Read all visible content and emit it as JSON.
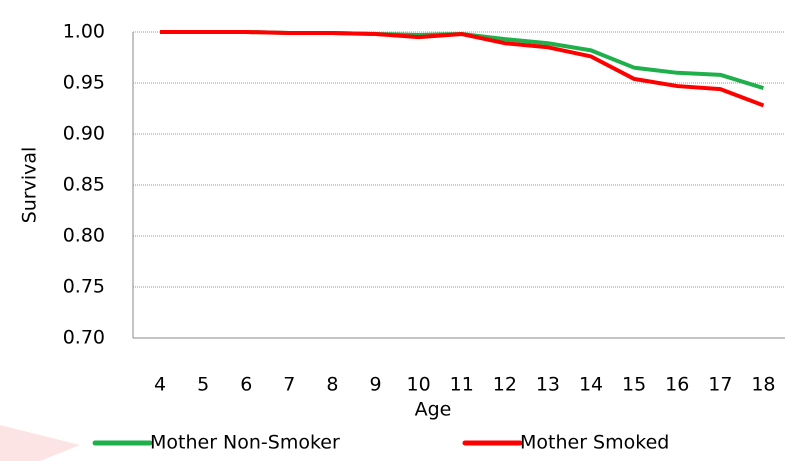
{
  "chart_data": {
    "type": "line",
    "x_label": "Age",
    "y_label": "Survival",
    "categories": [
      4,
      5,
      6,
      7,
      8,
      9,
      10,
      11,
      12,
      13,
      14,
      15,
      16,
      17,
      18
    ],
    "series": [
      {
        "name": "Mother Non-Smoker",
        "color": "#1fb04b",
        "values": [
          1.0,
          1.0,
          1.0,
          0.999,
          0.999,
          0.998,
          0.997,
          0.998,
          0.993,
          0.989,
          0.982,
          0.965,
          0.96,
          0.958,
          0.945
        ]
      },
      {
        "name": "Mother Smoked",
        "color": "#ff0000",
        "values": [
          1.0,
          1.0,
          1.0,
          0.999,
          0.999,
          0.998,
          0.995,
          0.998,
          0.989,
          0.985,
          0.976,
          0.954,
          0.947,
          0.944,
          0.928
        ]
      }
    ],
    "ylim": [
      0.7,
      1.0
    ],
    "yticks": [
      {
        "value": 0.7,
        "label": "0.70"
      },
      {
        "value": 0.75,
        "label": "0.75"
      },
      {
        "value": 0.8,
        "label": "0.80"
      },
      {
        "value": 0.85,
        "label": "0.85"
      },
      {
        "value": 0.9,
        "label": "0.90"
      },
      {
        "value": 0.95,
        "label": "0.95"
      },
      {
        "value": 1.0,
        "label": "1.00"
      }
    ],
    "grid": true,
    "legend": "bottom"
  }
}
